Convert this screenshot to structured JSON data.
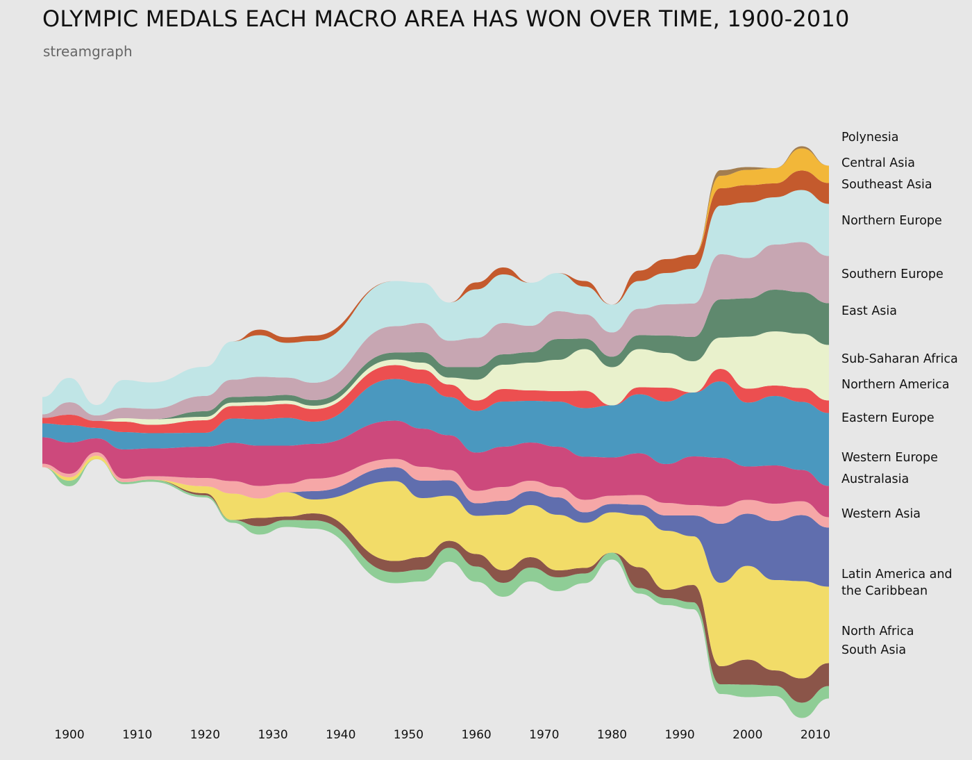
{
  "chart_data": {
    "type": "area",
    "subtype": "streamgraph",
    "title": "OLYMPIC MEDALS EACH MACRO AREA HAS WON OVER TIME, 1900-2010",
    "subtitle": "streamgraph",
    "xlabel": "",
    "ylabel": "",
    "xlim": [
      1896,
      2012
    ],
    "x": [
      1896,
      1900,
      1904,
      1908,
      1912,
      1920,
      1924,
      1928,
      1932,
      1936,
      1948,
      1952,
      1956,
      1960,
      1964,
      1968,
      1972,
      1976,
      1980,
      1984,
      1988,
      1992,
      1996,
      2000,
      2004,
      2008,
      2012
    ],
    "x_ticks": [
      "1900",
      "1910",
      "1920",
      "1930",
      "1940",
      "1950",
      "1960",
      "1970",
      "1980",
      "1990",
      "2000",
      "2010"
    ],
    "grid": false,
    "legend": "right",
    "series": [
      {
        "name": "South Asia",
        "color": "#8fcd96",
        "values": [
          0,
          8,
          0,
          3,
          3,
          3,
          4,
          12,
          10,
          12,
          16,
          17,
          20,
          22,
          20,
          20,
          20,
          14,
          10,
          8,
          10,
          10,
          14,
          18,
          15,
          22,
          18
        ]
      },
      {
        "name": "North Africa",
        "color": "#8b5549",
        "values": [
          0,
          0,
          0,
          0,
          0,
          3,
          0,
          12,
          5,
          10,
          16,
          18,
          10,
          18,
          18,
          15,
          10,
          8,
          0,
          30,
          12,
          25,
          26,
          36,
          22,
          35,
          33
        ]
      },
      {
        "name": "Latin America and the Caribbean",
        "color": "#f2dc68",
        "values": [
          0,
          5,
          5,
          0,
          0,
          10,
          38,
          28,
          35,
          20,
          115,
          85,
          65,
          55,
          80,
          75,
          80,
          65,
          58,
          75,
          85,
          70,
          120,
          135,
          130,
          140,
          110
        ]
      },
      {
        "name": "Western Asia",
        "color": "#606eae",
        "values": [
          0,
          0,
          0,
          0,
          0,
          0,
          0,
          0,
          0,
          12,
          20,
          25,
          22,
          18,
          20,
          20,
          25,
          15,
          12,
          15,
          22,
          30,
          85,
          75,
          85,
          95,
          85
        ]
      },
      {
        "name": "Australasia",
        "color": "#f6a7a7",
        "values": [
          5,
          5,
          5,
          5,
          5,
          12,
          18,
          18,
          12,
          18,
          12,
          20,
          15,
          18,
          20,
          15,
          15,
          18,
          12,
          14,
          18,
          15,
          25,
          20,
          25,
          20,
          15
        ]
      },
      {
        "name": "Western Europe",
        "color": "#cd497c",
        "values": [
          38,
          45,
          20,
          42,
          40,
          45,
          55,
          58,
          55,
          50,
          55,
          55,
          50,
          55,
          58,
          55,
          58,
          62,
          55,
          60,
          56,
          70,
          70,
          48,
          55,
          45,
          45
        ]
      },
      {
        "name": "Eastern Europe",
        "color": "#4a98bf",
        "values": [
          20,
          25,
          15,
          25,
          22,
          20,
          35,
          38,
          40,
          32,
          60,
          65,
          55,
          60,
          65,
          60,
          65,
          70,
          75,
          85,
          90,
          92,
          110,
          92,
          100,
          98,
          105
        ]
      },
      {
        "name": "Northern America",
        "color": "#ec4f50",
        "values": [
          8,
          15,
          10,
          15,
          12,
          18,
          18,
          20,
          20,
          18,
          20,
          20,
          18,
          15,
          18,
          15,
          15,
          25,
          0,
          10,
          20,
          0,
          18,
          20,
          15,
          20,
          18
        ]
      },
      {
        "name": "Sub-Saharan Africa",
        "color": "#e9f1cc",
        "values": [
          0,
          0,
          0,
          5,
          8,
          5,
          5,
          5,
          5,
          5,
          8,
          10,
          10,
          30,
          35,
          40,
          45,
          60,
          55,
          55,
          50,
          45,
          45,
          75,
          78,
          78,
          80
        ]
      },
      {
        "name": "East Asia",
        "color": "#5f896e",
        "values": [
          0,
          0,
          0,
          0,
          0,
          8,
          8,
          8,
          8,
          8,
          10,
          15,
          15,
          18,
          15,
          15,
          30,
          15,
          15,
          20,
          25,
          35,
          55,
          55,
          60,
          60,
          60
        ]
      },
      {
        "name": "Southern Europe",
        "color": "#c7a6b2",
        "values": [
          5,
          18,
          8,
          15,
          15,
          22,
          25,
          28,
          25,
          25,
          38,
          42,
          38,
          42,
          45,
          38,
          40,
          35,
          35,
          38,
          45,
          48,
          65,
          58,
          65,
          72,
          68
        ]
      },
      {
        "name": "Northern Europe",
        "color": "#c0e5e6",
        "values": [
          25,
          35,
          15,
          40,
          38,
          42,
          55,
          60,
          50,
          60,
          65,
          58,
          55,
          70,
          70,
          62,
          55,
          40,
          40,
          40,
          45,
          50,
          70,
          80,
          68,
          75,
          75
        ]
      },
      {
        "name": "Southeast Asia",
        "color": "#c45a2d",
        "values": [
          0,
          0,
          0,
          0,
          0,
          0,
          0,
          8,
          8,
          8,
          0,
          0,
          0,
          10,
          10,
          0,
          0,
          8,
          0,
          15,
          20,
          20,
          25,
          25,
          20,
          28,
          30
        ]
      },
      {
        "name": "Central Asia",
        "color": "#f2b739",
        "values": [
          0,
          0,
          0,
          0,
          0,
          0,
          0,
          0,
          0,
          0,
          0,
          0,
          0,
          0,
          0,
          0,
          0,
          0,
          0,
          0,
          0,
          0,
          18,
          22,
          22,
          32,
          25
        ]
      },
      {
        "name": "Polynesia",
        "color": "#a27d4f",
        "values": [
          0,
          0,
          0,
          0,
          0,
          0,
          0,
          0,
          0,
          0,
          0,
          0,
          0,
          0,
          0,
          0,
          0,
          0,
          0,
          0,
          0,
          0,
          8,
          4,
          0,
          3,
          0
        ]
      }
    ]
  },
  "labels": {
    "polynesia": "Polynesia",
    "central_asia": "Central Asia",
    "southeast_asia": "Southeast Asia",
    "northern_europe": "Northern Europe",
    "southern_europe": "Southern Europe",
    "east_asia": "East Asia",
    "sub_saharan_africa": "Sub-Saharan Africa",
    "northern_america": "Northern America",
    "eastern_europe": "Eastern Europe",
    "western_europe": "Western Europe",
    "australasia": "Australasia",
    "western_asia": "Western Asia",
    "latin_america_line1": "Latin America and",
    "latin_america_line2": "the Caribbean",
    "north_africa": "North Africa",
    "south_asia": "South Asia"
  }
}
